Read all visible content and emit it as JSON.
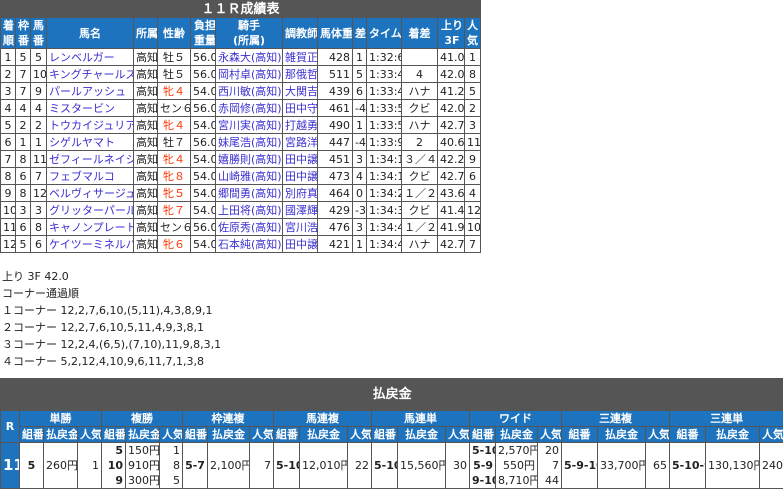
{
  "results": {
    "title": "１１Ｒ成績表",
    "headers": [
      "着順",
      "枠番",
      "馬番",
      "馬名",
      "所属",
      "性齢",
      "負担重量",
      "騎手(所属)",
      "調教師",
      "馬体重",
      "差",
      "タイム",
      "着差",
      "上り3F",
      "人気"
    ],
    "header_lines": [
      [
        "着",
        "順"
      ],
      [
        "枠",
        "番"
      ],
      [
        "馬",
        "番"
      ],
      [
        "馬名"
      ],
      [
        "所属"
      ],
      [
        "性齢"
      ],
      [
        "負担",
        "重量"
      ],
      [
        "騎手",
        "(所属)"
      ],
      [
        "調教師"
      ],
      [
        "馬体重"
      ],
      [
        "差"
      ],
      [
        "タイム"
      ],
      [
        "着差"
      ],
      [
        "上り",
        "3F"
      ],
      [
        "人",
        "気"
      ]
    ],
    "rows": [
      [
        "1",
        "5",
        "5",
        "レンベルガー",
        "高知",
        "牡５",
        "56.0",
        "永森大(高知)",
        "雑賀正",
        "428",
        "1",
        "1:32:6",
        "",
        "41.0",
        "1"
      ],
      [
        "2",
        "7",
        "10",
        "キングチャールズ",
        "高知",
        "牡５",
        "56.0",
        "岡村卓(高知)",
        "那俄哲",
        "511",
        "5",
        "1:33:4",
        "4",
        "42.0",
        "8"
      ],
      [
        "3",
        "7",
        "9",
        "パールアッシュ",
        "高知",
        "牝４",
        "54.0",
        "西川敏(高知)",
        "大関吉",
        "439",
        "6",
        "1:33:4",
        "ハナ",
        "41.2",
        "5"
      ],
      [
        "4",
        "4",
        "4",
        "ミスタービン",
        "高知",
        "セン６",
        "56.0",
        "赤岡修(高知)",
        "田中守",
        "461",
        "-4",
        "1:33:5",
        "クビ",
        "42.0",
        "2"
      ],
      [
        "5",
        "2",
        "2",
        "トウカイジュリア",
        "高知",
        "牝４",
        "54.0",
        "宮川実(高知)",
        "打越勇",
        "490",
        "1",
        "1:33:5",
        "ハナ",
        "42.7",
        "3"
      ],
      [
        "6",
        "1",
        "1",
        "シゲルヤマト",
        "高知",
        "牡７",
        "56.0",
        "妹尾浩(高知)",
        "宮路洋",
        "447",
        "-4",
        "1:33:9",
        "2",
        "40.6",
        "11"
      ],
      [
        "7",
        "8",
        "11",
        "ゼフィールネイジ",
        "高知",
        "牝４",
        "54.0",
        "嬉勝則(高知)",
        "田中譲",
        "451",
        "3",
        "1:34:1",
        "３／４",
        "42.2",
        "9"
      ],
      [
        "8",
        "6",
        "7",
        "フェブマルコ",
        "高知",
        "牝８",
        "54.0",
        "山崎雅(高知)",
        "田中譲",
        "473",
        "4",
        "1:34:1",
        "クビ",
        "42.7",
        "6"
      ],
      [
        "9",
        "8",
        "12",
        "ベルヴィサージュ",
        "高知",
        "牝５",
        "54.0",
        "郷間勇(高知)",
        "別府真",
        "464",
        "0",
        "1:34:2",
        "１／２",
        "43.6",
        "4"
      ],
      [
        "10",
        "3",
        "3",
        "グリッターパール",
        "高知",
        "牝７",
        "54.0",
        "上田将(高知)",
        "國澤輝",
        "429",
        "-3",
        "1:34:3",
        "クビ",
        "41.4",
        "12"
      ],
      [
        "11",
        "6",
        "8",
        "キャノンプレート",
        "高知",
        "セン６",
        "56.0",
        "佐原秀(高知)",
        "宮川浩",
        "476",
        "3",
        "1:34:4",
        "１／２",
        "41.9",
        "10"
      ],
      [
        "12",
        "5",
        "6",
        "ケイツーミネルバ",
        "高知",
        "牝６",
        "54.0",
        "石本純(高知)",
        "田中譲",
        "421",
        "1",
        "1:34:4",
        "ハナ",
        "42.7",
        "7"
      ]
    ]
  },
  "notes": {
    "agari": "上り 3F 42.0",
    "corner_title": "コーナー通過順",
    "corners": [
      "１コーナー 12,2,7,6,10,(5,11),4,3,8,9,1",
      "２コーナー 12,2,7,6,10,5,11,4,9,3,8,1",
      "３コーナー 12,2,4,(6,5),(7,10),11,9,8,3,1",
      "４コーナー 5,2,12,4,10,9,6,11,7,1,3,8"
    ]
  },
  "payout": {
    "title": "払戻金",
    "r_label": "R",
    "race": "11",
    "sub": [
      "組番",
      "払戻金",
      "人気"
    ],
    "groups": [
      {
        "name": "単勝",
        "combo": [
          "5"
        ],
        "pay": [
          "260円"
        ],
        "pop": [
          "1"
        ]
      },
      {
        "name": "複勝",
        "combo": [
          "5",
          "10",
          "9"
        ],
        "pay": [
          "150円",
          "910円",
          "300円"
        ],
        "pop": [
          "1",
          "8",
          "5"
        ]
      },
      {
        "name": "枠連複",
        "combo": [
          "5-7"
        ],
        "pay": [
          "2,100円"
        ],
        "pop": [
          "7"
        ]
      },
      {
        "name": "馬連複",
        "combo": [
          "5-10"
        ],
        "pay": [
          "12,010円"
        ],
        "pop": [
          "22"
        ]
      },
      {
        "name": "馬連単",
        "combo": [
          "5-10"
        ],
        "pay": [
          "15,560円"
        ],
        "pop": [
          "30"
        ]
      },
      {
        "name": "ワイド",
        "combo": [
          "5-10",
          "5-9",
          "9-10"
        ],
        "pay": [
          "2,570円",
          "550円",
          "8,710円"
        ],
        "pop": [
          "20",
          "7",
          "44"
        ]
      },
      {
        "name": "三連複",
        "combo": [
          "5-9-10"
        ],
        "pay": [
          "33,700円"
        ],
        "pop": [
          "65"
        ]
      },
      {
        "name": "三連単",
        "combo": [
          "5-10-9"
        ],
        "pay": [
          "130,130円"
        ],
        "pop": [
          "240"
        ]
      }
    ]
  },
  "colors": {
    "header": "#1e73be",
    "title_bar": "#555555",
    "link": "#3a2fd0",
    "female": "#ff3300"
  }
}
